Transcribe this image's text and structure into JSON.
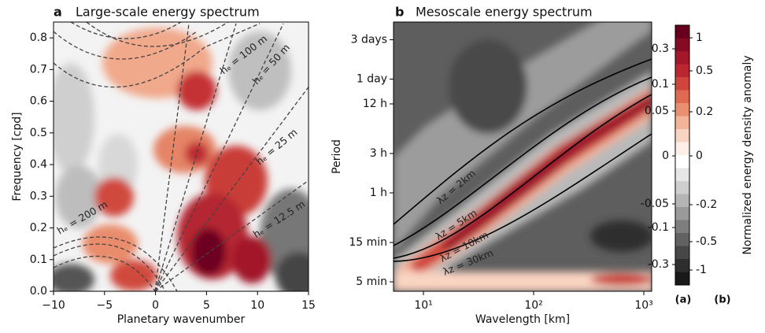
{
  "chart_data": [
    {
      "type": "contour",
      "panel": "a",
      "title": "Large-scale energy spectrum",
      "xlabel": "Planetary wavenumber",
      "ylabel": "Frequency [cpd]",
      "xlim": [
        -10,
        15
      ],
      "xticks": [
        {
          "value": -10,
          "label": "−10"
        },
        {
          "value": -5,
          "label": "−5"
        },
        0,
        5,
        10,
        15
      ],
      "ylim": [
        0,
        0.85
      ],
      "yticks": [
        {
          "value": 0,
          "label": "0.0"
        },
        0.1,
        0.2,
        0.3,
        0.4,
        0.5,
        0.6,
        0.7,
        0.8
      ],
      "annotations": [
        "hₑ = 200 m",
        "hₑ = 100 m",
        "hₑ = 50 m",
        "hₑ = 25 m",
        "hₑ = 12.5 m"
      ]
    },
    {
      "type": "contour",
      "panel": "b",
      "title": "Mesoscale energy spectrum",
      "xlabel": "Wavelength [km]",
      "ylabel": "Period",
      "xlog": true,
      "ylog": true,
      "xlim": [
        5.35,
        1178
      ],
      "xticks": [
        {
          "value": 10,
          "label": "10¹"
        },
        {
          "value": 100,
          "label": "10²"
        },
        {
          "value": 1000,
          "label": "10³"
        }
      ],
      "ylim": [
        0.064,
        118
      ],
      "yticks": [
        {
          "value": 72,
          "label": "3 days"
        },
        {
          "value": 24,
          "label": "1 day"
        },
        {
          "value": 12,
          "label": "12 h"
        },
        {
          "value": 3,
          "label": "3 h"
        },
        {
          "value": 1,
          "label": "1 h"
        },
        {
          "value": 0.25,
          "label": "15 min"
        },
        {
          "value": 0.0833,
          "label": "5 min"
        }
      ],
      "annotations": [
        "λz = 2km",
        "λz = 5km",
        "λz = 10km",
        "λz = 30km"
      ]
    },
    {
      "type": "colorbar",
      "label": "Normalized energy density anomaly",
      "colors": [
        "#67001f",
        "#870a24",
        "#a3172b",
        "#bb2631",
        "#cf453b",
        "#de6a52",
        "#ea8f70",
        "#f4b499",
        "#fad4c3",
        "#fdeee7",
        "#ffffff",
        "#e6e6e6",
        "#cecece",
        "#b5b5b5",
        "#9a9a9a",
        "#7e7e7e",
        "#626262",
        "#474747",
        "#2e2e2e",
        "#191919"
      ],
      "ticks_a": [
        0.3,
        0.1,
        0.05,
        0,
        -0.05,
        -0.1,
        -0.3
      ],
      "ticks_b": [
        1,
        0.5,
        0.2,
        0,
        -0.2,
        -0.5,
        -1
      ],
      "side_labels": [
        "(a)",
        "(b)"
      ]
    }
  ]
}
